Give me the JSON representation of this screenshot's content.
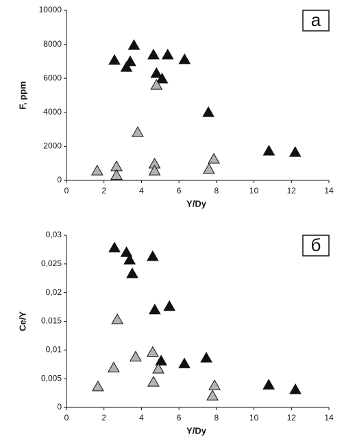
{
  "chart_data": [
    {
      "type": "scatter",
      "panel_label": "a",
      "x_label": "Y/Dy",
      "y_label": "F, ppm",
      "xlim": [
        0,
        14
      ],
      "xticks": [
        0,
        2,
        4,
        6,
        8,
        10,
        12,
        14
      ],
      "ylim": [
        0,
        10000
      ],
      "yticks": [
        0,
        2000,
        4000,
        6000,
        8000,
        10000
      ],
      "series": [
        {
          "color": "#111111",
          "x": [
            2.56,
            3.2,
            3.4,
            3.6,
            4.64,
            4.8,
            5.1,
            5.4,
            6.3,
            7.57,
            10.8,
            12.2
          ],
          "values": [
            7060,
            6650,
            6980,
            7940,
            7380,
            6290,
            5970,
            7380,
            7100,
            3990,
            1730,
            1650
          ]
        },
        {
          "color": "#b4b4b4",
          "x": [
            1.64,
            2.67,
            2.67,
            3.8,
            4.7,
            4.7,
            4.8,
            7.6,
            7.86
          ],
          "values": [
            560,
            810,
            300,
            2820,
            970,
            560,
            5600,
            650,
            1250
          ]
        }
      ]
    },
    {
      "type": "scatter",
      "panel_label": "б",
      "x_label": "Y/Dy",
      "y_label": "Ce/Y",
      "xlim": [
        0,
        14
      ],
      "xticks": [
        0,
        2,
        4,
        6,
        8,
        10,
        12,
        14
      ],
      "ylim": [
        0,
        0.03
      ],
      "yticks": [
        0,
        {
          "value": 0.005,
          "label": "0,005"
        },
        {
          "value": 0.01,
          "label": "0,01"
        },
        {
          "value": 0.015,
          "label": "0,015"
        },
        {
          "value": 0.02,
          "label": "0,02"
        },
        {
          "value": 0.025,
          "label": "0,025"
        },
        {
          "value": 0.03,
          "label": "0,03"
        }
      ],
      "series": [
        {
          "color": "#111111",
          "x": [
            2.56,
            3.2,
            3.37,
            3.51,
            4.6,
            4.71,
            5.49,
            5.05,
            6.29,
            7.46,
            10.79,
            12.21
          ],
          "values": [
            0.0278,
            0.027,
            0.0257,
            0.0233,
            0.0263,
            0.017,
            0.0176,
            0.0081,
            0.0076,
            0.0086,
            0.0039,
            0.0031
          ]
        },
        {
          "color": "#b4b4b4",
          "x": [
            1.68,
            2.52,
            2.71,
            3.69,
            4.6,
            4.64,
            4.9,
            7.9,
            7.79
          ],
          "values": [
            0.0036,
            0.0069,
            0.0153,
            0.0088,
            0.0096,
            0.0044,
            0.0067,
            0.0038,
            0.002
          ]
        }
      ]
    }
  ]
}
